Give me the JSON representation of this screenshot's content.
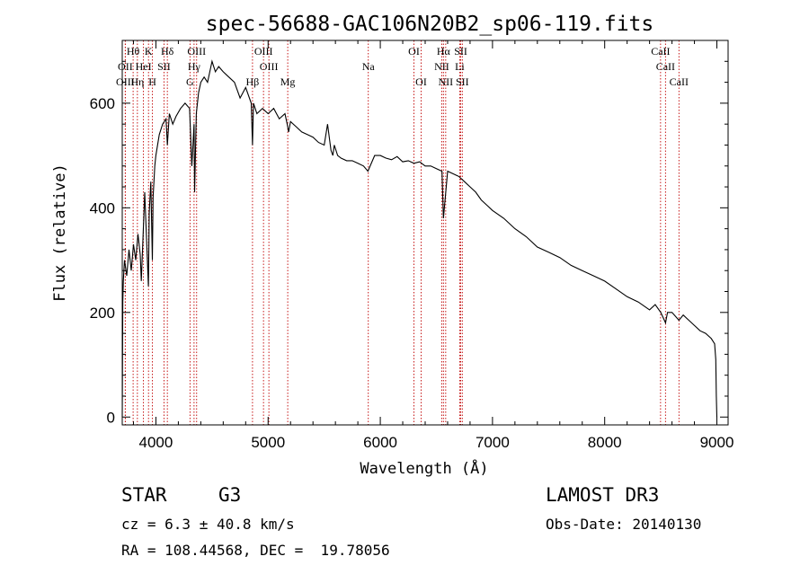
{
  "chart_data": {
    "type": "line",
    "title": "spec-56688-GAC106N20B2_sp06-119.fits",
    "xlabel": "Wavelength (Å)",
    "ylabel": "Flux (relative)",
    "xlim": [
      3700,
      9100
    ],
    "ylim": [
      -15,
      720
    ],
    "xticks": [
      4000,
      5000,
      6000,
      7000,
      8000,
      9000
    ],
    "yticks": [
      0,
      200,
      400,
      600
    ],
    "series": [
      {
        "name": "flux",
        "x": [
          3700,
          3705,
          3710,
          3720,
          3740,
          3760,
          3780,
          3800,
          3820,
          3840,
          3860,
          3870,
          3890,
          3900,
          3920,
          3933,
          3940,
          3955,
          3968,
          3975,
          3990,
          4000,
          4030,
          4060,
          4090,
          4102,
          4120,
          4150,
          4180,
          4220,
          4260,
          4300,
          4320,
          4340,
          4345,
          4360,
          4380,
          4400,
          4430,
          4460,
          4500,
          4530,
          4560,
          4600,
          4650,
          4700,
          4750,
          4800,
          4850,
          4861,
          4870,
          4900,
          4950,
          5000,
          5050,
          5100,
          5150,
          5170,
          5183,
          5200,
          5250,
          5300,
          5350,
          5400,
          5450,
          5500,
          5530,
          5560,
          5577,
          5590,
          5620,
          5650,
          5700,
          5750,
          5800,
          5850,
          5890,
          5950,
          6000,
          6050,
          6100,
          6150,
          6200,
          6250,
          6300,
          6350,
          6400,
          6450,
          6500,
          6550,
          6563,
          6600,
          6650,
          6700,
          6750,
          6800,
          6850,
          6900,
          6950,
          7000,
          7100,
          7200,
          7300,
          7400,
          7500,
          7600,
          7700,
          7800,
          7900,
          8000,
          8100,
          8200,
          8300,
          8400,
          8450,
          8500,
          8542,
          8560,
          8600,
          8662,
          8700,
          8750,
          8800,
          8850,
          8900,
          8950,
          8980,
          8990,
          8995,
          9000
        ],
        "values": [
          0,
          220,
          260,
          300,
          270,
          320,
          280,
          330,
          300,
          350,
          310,
          260,
          370,
          430,
          320,
          250,
          390,
          450,
          300,
          420,
          480,
          500,
          540,
          560,
          570,
          520,
          580,
          560,
          575,
          590,
          600,
          590,
          480,
          560,
          430,
          580,
          620,
          640,
          650,
          640,
          680,
          660,
          670,
          660,
          650,
          640,
          610,
          630,
          600,
          520,
          600,
          580,
          590,
          580,
          590,
          570,
          580,
          560,
          545,
          565,
          555,
          545,
          540,
          535,
          525,
          520,
          560,
          510,
          500,
          520,
          500,
          495,
          490,
          490,
          485,
          480,
          470,
          500,
          500,
          495,
          492,
          498,
          488,
          490,
          485,
          488,
          480,
          480,
          475,
          470,
          380,
          470,
          465,
          460,
          450,
          440,
          430,
          415,
          405,
          395,
          380,
          360,
          345,
          325,
          315,
          305,
          290,
          280,
          270,
          260,
          245,
          230,
          220,
          205,
          215,
          200,
          180,
          200,
          200,
          185,
          195,
          185,
          175,
          165,
          160,
          150,
          140,
          110,
          40,
          0
        ]
      }
    ],
    "lines": [
      {
        "label": "Hθ",
        "x": 3797,
        "row": 0
      },
      {
        "label": "OII",
        "x": 3727,
        "row": 1
      },
      {
        "label": "OIII",
        "x": 3727,
        "row": 2
      },
      {
        "label": "K",
        "x": 3934,
        "row": 0
      },
      {
        "label": "HeI",
        "x": 3889,
        "row": 1
      },
      {
        "label": "Hη",
        "x": 3835,
        "row": 2
      },
      {
        "label": "Hδ",
        "x": 4102,
        "row": 0
      },
      {
        "label": "SII",
        "x": 4072,
        "row": 1
      },
      {
        "label": "H",
        "x": 3969,
        "row": 2
      },
      {
        "label": "OIII",
        "x": 4363,
        "row": 0
      },
      {
        "label": "Hγ",
        "x": 4340,
        "row": 1
      },
      {
        "label": "G",
        "x": 4304,
        "row": 2
      },
      {
        "label": "Hβ",
        "x": 4861,
        "row": 2
      },
      {
        "label": "OIII",
        "x": 4959,
        "row": 0
      },
      {
        "label": "OIII",
        "x": 5007,
        "row": 1
      },
      {
        "label": "Mg",
        "x": 5175,
        "row": 2
      },
      {
        "label": "Na",
        "x": 5893,
        "row": 1
      },
      {
        "label": "OI",
        "x": 6300,
        "row": 0
      },
      {
        "label": "OI",
        "x": 6364,
        "row": 2
      },
      {
        "label": "Hα",
        "x": 6563,
        "row": 0
      },
      {
        "label": "NII",
        "x": 6548,
        "row": 1
      },
      {
        "label": "NII",
        "x": 6583,
        "row": 2
      },
      {
        "label": "SII",
        "x": 6717,
        "row": 0
      },
      {
        "label": "Li",
        "x": 6708,
        "row": 1
      },
      {
        "label": "SII",
        "x": 6731,
        "row": 2
      },
      {
        "label": "CaII",
        "x": 8498,
        "row": 0
      },
      {
        "label": "CaII",
        "x": 8542,
        "row": 1
      },
      {
        "label": "CaII",
        "x": 8662,
        "row": 2
      }
    ]
  },
  "info": {
    "object_type": "STAR",
    "subclass": "G3",
    "survey": "LAMOST DR3",
    "redshift": "cz = 6.3 ± 40.8 km/s",
    "obs_date": "Obs-Date: 20140130",
    "coords": "RA = 108.44568, DEC =  19.78056"
  }
}
